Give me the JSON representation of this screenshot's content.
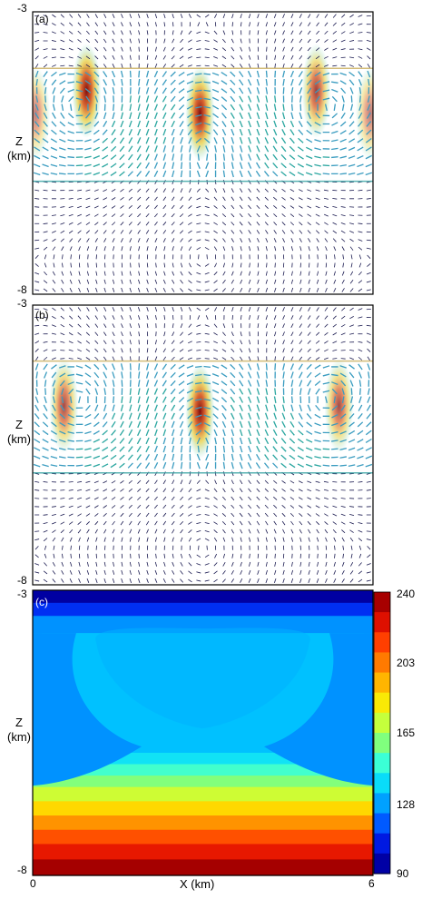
{
  "chart_data": [
    {
      "type": "quiver",
      "panel_label": "(a)",
      "ylabel": "Z\n(km)",
      "ylim": [
        -8,
        -3
      ],
      "xlim": [
        0,
        6
      ],
      "y_ticks": [
        "-3",
        "-8"
      ],
      "layer": {
        "top": -4,
        "bottom": -6
      },
      "vortex_cores_x": [
        1,
        3,
        5
      ],
      "hotspots": [
        {
          "x": 0.95,
          "z": -4.4,
          "intensity": 1.0
        },
        {
          "x": 2.95,
          "z": -4.8,
          "intensity": 1.0
        },
        {
          "x": 5.0,
          "z": -4.4,
          "intensity": 0.8
        },
        {
          "x": 0.05,
          "z": -4.8,
          "intensity": 0.55
        },
        {
          "x": 5.95,
          "z": -4.8,
          "intensity": 0.55
        }
      ]
    },
    {
      "type": "quiver",
      "panel_label": "(b)",
      "ylabel": "Z\n(km)",
      "ylim": [
        -8,
        -3
      ],
      "xlim": [
        0,
        6
      ],
      "y_ticks": [
        "-3",
        "-8"
      ],
      "layer": {
        "top": -4,
        "bottom": -6
      },
      "vortex_cores_x": [
        1,
        3,
        5
      ],
      "hotspots": [
        {
          "x": 0.55,
          "z": -4.8,
          "intensity": 0.75
        },
        {
          "x": 2.95,
          "z": -4.9,
          "intensity": 1.0
        },
        {
          "x": 5.4,
          "z": -4.8,
          "intensity": 0.75
        }
      ]
    },
    {
      "type": "heatmap",
      "panel_label": "(c)",
      "xlabel": "X (km)",
      "ylabel": "Z\n(km)",
      "xlim": [
        0,
        6
      ],
      "ylim": [
        -8,
        -3
      ],
      "x_ticks": [
        "0",
        "6"
      ],
      "y_ticks": [
        "-3",
        "-8"
      ],
      "colorbar": {
        "min": 90,
        "max": 240,
        "ticks": [
          "240",
          "203",
          "165",
          "128",
          "90"
        ],
        "colors": [
          "#00007f",
          "#0000d0",
          "#0040ff",
          "#0090ff",
          "#00d4ff",
          "#33ffe0",
          "#7dff80",
          "#c8ff3a",
          "#ffe600",
          "#ffaa00",
          "#ff6a00",
          "#ff2a00",
          "#c80000",
          "#8b0000"
        ]
      },
      "contour_bands": [
        {
          "z_top": -3.0,
          "z_bottom": -3.22,
          "value": 95
        },
        {
          "z_top": -3.22,
          "z_bottom": -3.45,
          "value": 110
        },
        {
          "z_top": -3.45,
          "z_bottom": -3.75,
          "value": 125
        },
        {
          "z_top": -3.75,
          "z_bottom": -5.85,
          "value": 133
        },
        {
          "z_top": -5.85,
          "z_bottom": -6.05,
          "value": 140
        },
        {
          "z_top": -6.05,
          "z_bottom": -6.25,
          "value": 150
        },
        {
          "z_top": -6.25,
          "z_bottom": -6.45,
          "value": 160
        },
        {
          "z_top": -6.45,
          "z_bottom": -6.7,
          "value": 172
        },
        {
          "z_top": -6.7,
          "z_bottom": -6.95,
          "value": 185
        },
        {
          "z_top": -6.95,
          "z_bottom": -7.2,
          "value": 198
        },
        {
          "z_top": -7.2,
          "z_bottom": -7.45,
          "value": 210
        },
        {
          "z_top": -7.45,
          "z_bottom": -7.72,
          "value": 222
        },
        {
          "z_top": -7.72,
          "z_bottom": -8.0,
          "value": 235
        }
      ],
      "inner_region_value": 130,
      "lobes_value": 125
    }
  ]
}
